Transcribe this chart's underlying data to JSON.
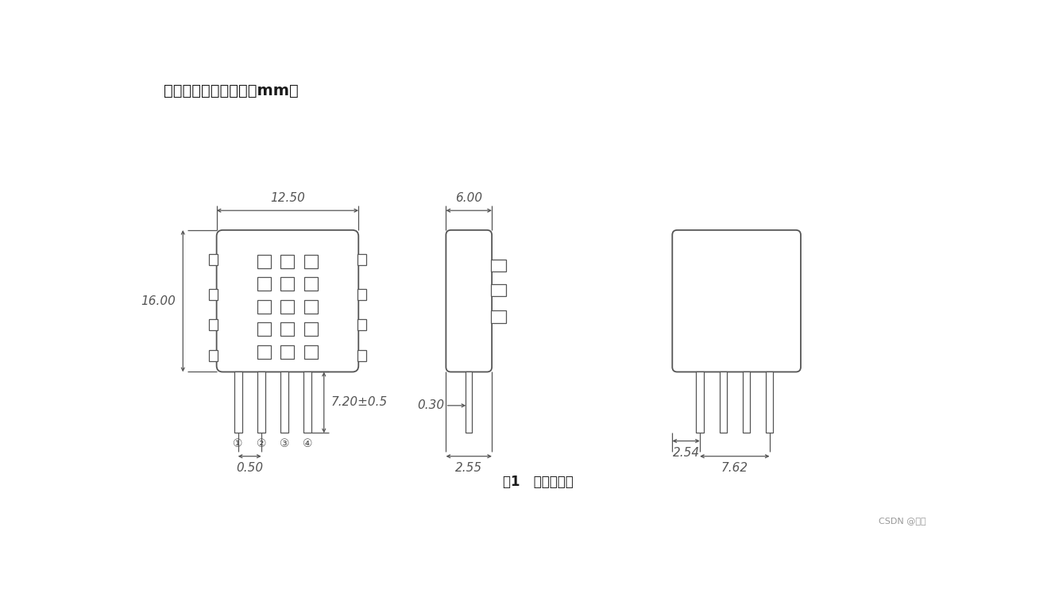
{
  "bg_color": "#ffffff",
  "lc": "#555555",
  "dc": "#555555",
  "title": "四、外形尺寸（单位：mm）",
  "caption": "图1   产品尺寸图",
  "watermark": "CSDN @记帖",
  "title_fontsize": 14,
  "caption_fontsize": 12,
  "dim_fontsize": 11,
  "pin_label_fontsize": 10
}
